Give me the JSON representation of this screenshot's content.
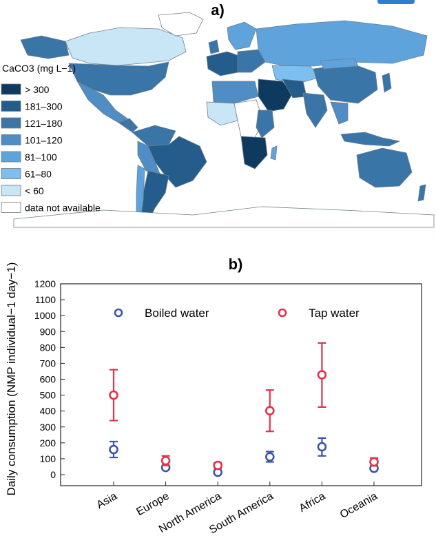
{
  "chart_data": [
    {
      "type": "choropleth-map",
      "panel_label": "a)",
      "legend": {
        "title": "CaCO3 (mg L−1)",
        "classes": [
          {
            "label": "> 300",
            "color": "#0f3a5f"
          },
          {
            "label": "181–300",
            "color": "#245d8c"
          },
          {
            "label": "121–180",
            "color": "#3a75a8"
          },
          {
            "label": "101–120",
            "color": "#4f8dc4"
          },
          {
            "label": "81–100",
            "color": "#5fa3dc"
          },
          {
            "label": "61–80",
            "color": "#7dbfee"
          },
          {
            "label": "< 60",
            "color": "#c9e6f7"
          }
        ],
        "no_data": {
          "label": "data not available",
          "color": "#ffffff"
        }
      }
    },
    {
      "type": "scatter-errorbar",
      "panel_label": "b)",
      "ylabel": "Daily consumption (NMP individual−1 day−1)",
      "ylim": [
        0,
        1200
      ],
      "yticks": [
        0,
        100,
        200,
        300,
        400,
        500,
        600,
        700,
        800,
        900,
        1000,
        1100,
        1200
      ],
      "categories": [
        "Asia",
        "Europe",
        "North America",
        "South America",
        "Africa",
        "Oceania"
      ],
      "legend_position": "top",
      "series": [
        {
          "name": "Boiled water",
          "color": "#3b55a8",
          "values": [
            158,
            45,
            15,
            112,
            175,
            40
          ],
          "err_low": [
            108,
            35,
            8,
            80,
            118,
            32
          ],
          "err_high": [
            208,
            56,
            22,
            145,
            230,
            50
          ]
        },
        {
          "name": "Tap water",
          "color": "#e0334a",
          "values": [
            500,
            88,
            58,
            402,
            628,
            80
          ],
          "err_low": [
            340,
            58,
            40,
            272,
            425,
            55
          ],
          "err_high": [
            660,
            118,
            75,
            532,
            828,
            105
          ]
        }
      ]
    }
  ]
}
